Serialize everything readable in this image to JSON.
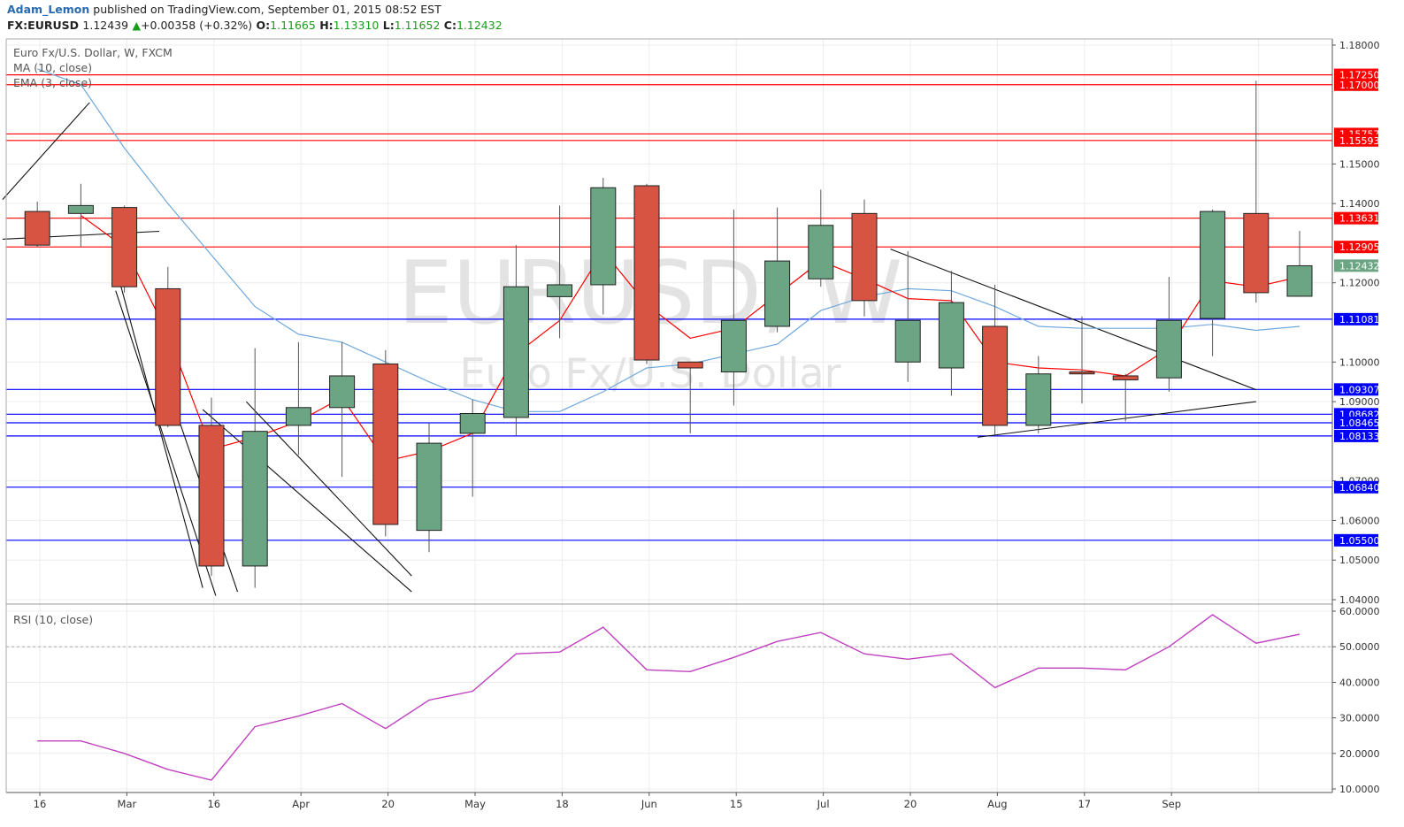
{
  "header": {
    "author": "Adam_Lemon",
    "published": "published on TradingView.com, September 01, 2015 08:52 EST",
    "symbol": "FX:EURUSD",
    "last": "1.12439",
    "change": "+0.00358 (+0.32%)",
    "o_label": "O:",
    "o": "1.11665",
    "h_label": "H:",
    "h": "1.13310",
    "l_label": "L:",
    "l": "1.11652",
    "c_label": "C:",
    "c": "1.12432"
  },
  "legend": {
    "title": "Euro Fx/U.S. Dollar, W, FXCM",
    "ma": "MA (10, close)",
    "ema": "EMA (3, close)",
    "rsi": "RSI (10, close)"
  },
  "watermark": {
    "symbol": "EURUSD, W",
    "name": "Euro Fx/U.S. Dollar"
  },
  "colors": {
    "up": "#6ba583",
    "down": "#d75442",
    "resistance": "#ff0000",
    "support": "#0000ff",
    "ma": "#6fa8dc",
    "ema": "#ff0000",
    "rsi": "#c040c0"
  },
  "chart_data": [
    {
      "type": "candlestick",
      "y_axis_ticks": [
        "1.18000",
        "1.15000",
        "1.14000",
        "1.12000",
        "1.10000",
        "1.09000",
        "1.07000",
        "1.06000",
        "1.05000",
        "1.04000"
      ],
      "ylim": [
        1.04,
        1.18
      ],
      "x_tick_labels": [
        "16",
        "Mar",
        "16",
        "Apr",
        "20",
        "May",
        "18",
        "Jun",
        "15",
        "Jul",
        "20",
        "Aug",
        "17",
        "Sep"
      ],
      "candles": [
        {
          "o": 1.138,
          "h": 1.1405,
          "l": 1.129,
          "c": 1.1295
        },
        {
          "o": 1.1375,
          "h": 1.145,
          "l": 1.129,
          "c": 1.1395
        },
        {
          "o": 1.139,
          "h": 1.1395,
          "l": 1.1175,
          "c": 1.119
        },
        {
          "o": 1.1185,
          "h": 1.124,
          "l": 1.0835,
          "c": 1.084
        },
        {
          "o": 1.084,
          "h": 1.091,
          "l": 1.046,
          "c": 1.0485
        },
        {
          "o": 1.0485,
          "h": 1.1035,
          "l": 1.043,
          "c": 1.0825
        },
        {
          "o": 1.084,
          "h": 1.105,
          "l": 1.0765,
          "c": 1.0885
        },
        {
          "o": 1.0885,
          "h": 1.105,
          "l": 1.071,
          "c": 1.0965
        },
        {
          "o": 1.0995,
          "h": 1.103,
          "l": 1.056,
          "c": 1.059
        },
        {
          "o": 1.0575,
          "h": 1.0845,
          "l": 1.052,
          "c": 1.0795
        },
        {
          "o": 1.082,
          "h": 1.0905,
          "l": 1.066,
          "c": 1.087
        },
        {
          "o": 1.086,
          "h": 1.1295,
          "l": 1.0815,
          "c": 1.119
        },
        {
          "o": 1.1165,
          "h": 1.1395,
          "l": 1.106,
          "c": 1.1195
        },
        {
          "o": 1.1195,
          "h": 1.1465,
          "l": 1.112,
          "c": 1.144
        },
        {
          "o": 1.1445,
          "h": 1.145,
          "l": 1.0995,
          "c": 1.1005
        },
        {
          "o": 1.1,
          "h": 1.1,
          "l": 1.082,
          "c": 1.0985
        },
        {
          "o": 1.0975,
          "h": 1.1385,
          "l": 1.089,
          "c": 1.1105
        },
        {
          "o": 1.109,
          "h": 1.139,
          "l": 1.1075,
          "c": 1.1255
        },
        {
          "o": 1.121,
          "h": 1.1435,
          "l": 1.119,
          "c": 1.1345
        },
        {
          "o": 1.1375,
          "h": 1.141,
          "l": 1.1115,
          "c": 1.1155
        },
        {
          "o": 1.1,
          "h": 1.128,
          "l": 1.095,
          "c": 1.1105
        },
        {
          "o": 1.0985,
          "h": 1.123,
          "l": 1.0915,
          "c": 1.115
        },
        {
          "o": 1.109,
          "h": 1.1195,
          "l": 1.0815,
          "c": 1.084
        },
        {
          "o": 1.084,
          "h": 1.1015,
          "l": 1.082,
          "c": 1.097
        },
        {
          "o": 1.0975,
          "h": 1.1115,
          "l": 1.0895,
          "c": 1.097
        },
        {
          "o": 1.0965,
          "h": 1.097,
          "l": 1.085,
          "c": 1.0955
        },
        {
          "o": 1.096,
          "h": 1.1215,
          "l": 1.0925,
          "c": 1.1105
        },
        {
          "o": 1.111,
          "h": 1.1385,
          "l": 1.1015,
          "c": 1.138
        },
        {
          "o": 1.1375,
          "h": 1.171,
          "l": 1.115,
          "c": 1.1175
        },
        {
          "o": 1.1166,
          "h": 1.1331,
          "l": 1.1165,
          "c": 1.1243
        }
      ],
      "ma_10": [
        1.174,
        1.17,
        1.154,
        1.14,
        1.127,
        1.114,
        1.107,
        1.105,
        1.1,
        1.095,
        1.0905,
        1.0875,
        1.0875,
        1.0925,
        1.0985,
        1.0995,
        1.102,
        1.1045,
        1.113,
        1.1165,
        1.1185,
        1.118,
        1.114,
        1.109,
        1.1085,
        1.1085,
        1.1085,
        1.1095,
        1.108,
        1.109
      ],
      "ema_3": [
        null,
        1.137,
        1.129,
        1.107,
        1.078,
        1.081,
        1.085,
        1.091,
        1.075,
        1.0775,
        1.082,
        1.102,
        1.1105,
        1.128,
        1.1145,
        1.106,
        1.1085,
        1.117,
        1.1255,
        1.121,
        1.116,
        1.1155,
        1.1,
        1.0985,
        1.098,
        1.0965,
        1.1035,
        1.1205,
        1.119,
        1.1215
      ],
      "horizontal_levels": [
        {
          "value": "1.17250",
          "kind": "resistance"
        },
        {
          "value": "1.17000",
          "kind": "resistance"
        },
        {
          "value": "1.15757",
          "kind": "resistance"
        },
        {
          "value": "1.15593",
          "kind": "resistance"
        },
        {
          "value": "1.13631",
          "kind": "resistance"
        },
        {
          "value": "1.12905",
          "kind": "resistance"
        },
        {
          "value": "1.11081",
          "kind": "support"
        },
        {
          "value": "1.09307",
          "kind": "support"
        },
        {
          "value": "1.08682",
          "kind": "support"
        },
        {
          "value": "1.08465",
          "kind": "support"
        },
        {
          "value": "1.08133",
          "kind": "support"
        },
        {
          "value": "1.06840",
          "kind": "support"
        },
        {
          "value": "1.05500",
          "kind": "support"
        }
      ],
      "last_price_label": "1.12432",
      "trendlines": [
        {
          "from": [
            -0.8,
            1.141
          ],
          "to": [
            1.2,
            1.1655
          ]
        },
        {
          "from": [
            -0.8,
            1.131
          ],
          "to": [
            2.8,
            1.133
          ]
        },
        {
          "from": [
            1.8,
            1.124
          ],
          "to": [
            3.8,
            1.043
          ]
        },
        {
          "from": [
            1.8,
            1.118
          ],
          "to": [
            4.1,
            1.041
          ]
        },
        {
          "from": [
            2.8,
            1.1
          ],
          "to": [
            4.6,
            1.042
          ]
        },
        {
          "from": [
            3.8,
            1.088
          ],
          "to": [
            8.6,
            1.042
          ]
        },
        {
          "from": [
            4.8,
            1.09
          ],
          "to": [
            8.6,
            1.046
          ]
        },
        {
          "from": [
            19.6,
            1.1285
          ],
          "to": [
            28.0,
            1.093
          ]
        },
        {
          "from": [
            21.6,
            1.081
          ],
          "to": [
            28.0,
            1.09
          ]
        }
      ]
    },
    {
      "type": "line",
      "name": "RSI (10, close)",
      "y_axis_ticks": [
        "60.0000",
        "50.0000",
        "40.0000",
        "30.0000",
        "20.0000",
        "10.0000"
      ],
      "ylim": [
        10,
        60
      ],
      "reference_line": 50,
      "values": [
        23.5,
        23.5,
        20.0,
        15.5,
        12.5,
        27.5,
        30.5,
        34.0,
        27.0,
        35.0,
        37.5,
        48.0,
        48.5,
        55.5,
        43.5,
        43.0,
        47.0,
        51.5,
        54.0,
        48.0,
        46.5,
        48.0,
        38.5,
        44.0,
        44.0,
        43.5,
        50.0,
        59.0,
        51.0,
        53.5
      ]
    }
  ]
}
